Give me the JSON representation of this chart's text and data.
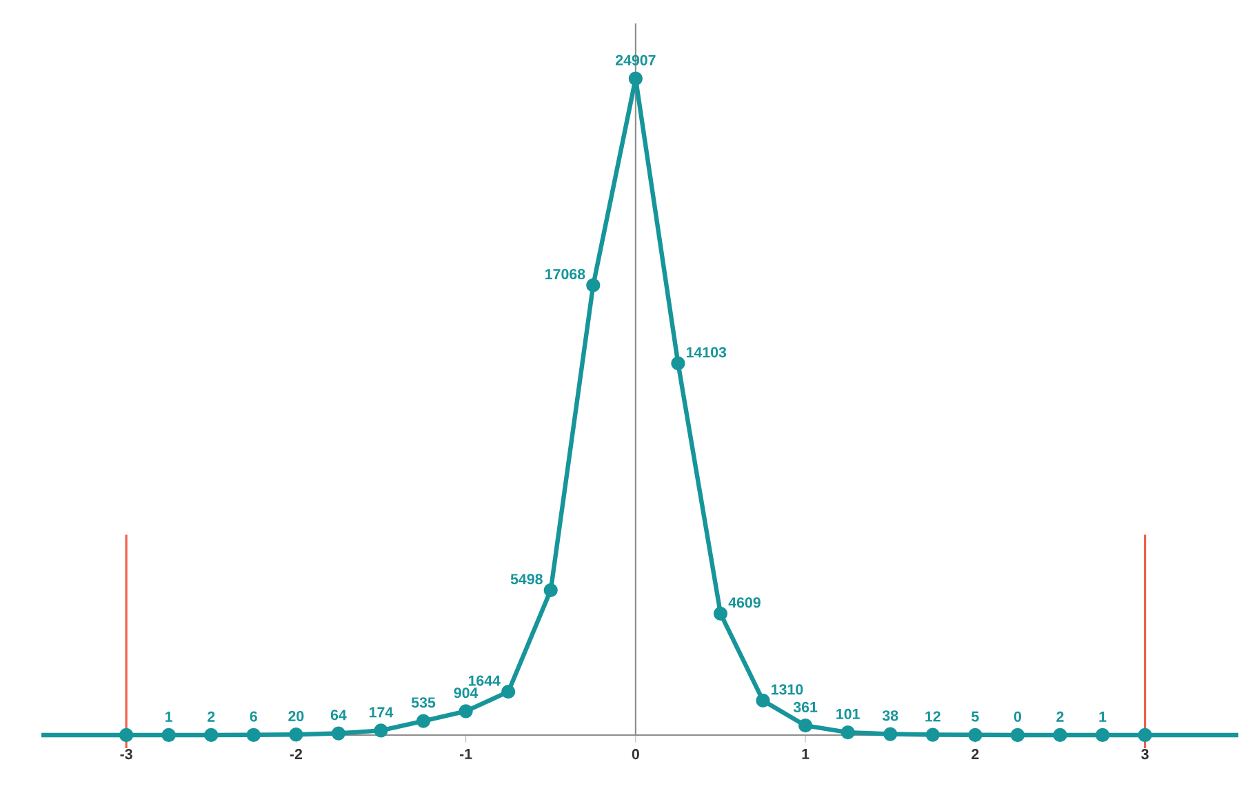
{
  "chart_data": {
    "type": "line",
    "x": [
      -3.5,
      -3,
      -2.75,
      -2.5,
      -2.25,
      -2,
      -1.75,
      -1.5,
      -1.25,
      -1,
      -0.75,
      -0.5,
      -0.25,
      0,
      0.25,
      0.5,
      0.75,
      1,
      1.25,
      1.5,
      1.75,
      2,
      2.25,
      2.5,
      2.75,
      3,
      3.55
    ],
    "series": [
      {
        "color": "#16959a",
        "values": [
          0,
          0,
          1,
          2,
          6,
          20,
          64,
          174,
          535,
          904,
          1644,
          5498,
          17068,
          24907,
          14103,
          4609,
          1310,
          361,
          101,
          38,
          12,
          5,
          0,
          2,
          1,
          0,
          0
        ],
        "value_labels": [
          null,
          null,
          "1",
          "2",
          "6",
          "20",
          "64",
          "174",
          "535",
          "904",
          "1644",
          "5498",
          "17068",
          "24907",
          "14103",
          "4609",
          "1310",
          "361",
          "101",
          "38",
          "12",
          "5",
          "0",
          "2",
          "1",
          null,
          null
        ]
      }
    ],
    "xlim": [
      -3.5,
      3.55
    ],
    "ylim": [
      0,
      27000
    ],
    "xticks": [
      -3,
      -2,
      -1,
      0,
      1,
      2,
      3
    ],
    "tick_labels": "x",
    "marker": "circle",
    "line_style": "solid",
    "ref_lines": [
      {
        "axis": "x",
        "value": -3,
        "color": "#f0604a"
      },
      {
        "axis": "x",
        "value": 3,
        "color": "#f0604a"
      }
    ]
  }
}
